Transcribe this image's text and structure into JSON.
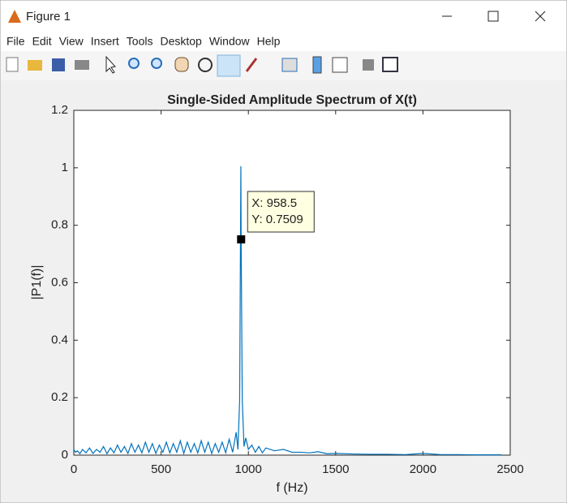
{
  "window": {
    "title": "Figure 1"
  },
  "menu": [
    "File",
    "Edit",
    "View",
    "Insert",
    "Tools",
    "Desktop",
    "Window",
    "Help"
  ],
  "chart_data": {
    "type": "line",
    "title": "Single-Sided Amplitude Spectrum of X(t)",
    "xlabel": "f (Hz)",
    "ylabel": "|P1(f)|",
    "color": "#0072bd",
    "x": [
      0,
      10,
      20,
      35,
      50,
      70,
      90,
      110,
      130,
      150,
      170,
      190,
      210,
      230,
      250,
      270,
      290,
      310,
      330,
      350,
      370,
      390,
      410,
      430,
      450,
      470,
      490,
      510,
      530,
      550,
      570,
      590,
      610,
      630,
      650,
      670,
      690,
      710,
      730,
      750,
      770,
      790,
      810,
      830,
      850,
      870,
      890,
      910,
      930,
      940,
      950,
      957,
      958.5,
      965,
      975,
      985,
      1000,
      1020,
      1040,
      1060,
      1080,
      1100,
      1150,
      1200,
      1250,
      1300,
      1350,
      1400,
      1450,
      1500,
      1600,
      1700,
      1800,
      1900,
      2000,
      2100,
      2200,
      2300,
      2400,
      2450
    ],
    "values": [
      0.02,
      0.01,
      0.015,
      0.005,
      0.02,
      0.008,
      0.025,
      0.006,
      0.02,
      0.01,
      0.03,
      0.005,
      0.025,
      0.008,
      0.035,
      0.01,
      0.03,
      0.006,
      0.04,
      0.01,
      0.035,
      0.008,
      0.045,
      0.01,
      0.04,
      0.006,
      0.035,
      0.01,
      0.045,
      0.008,
      0.04,
      0.01,
      0.05,
      0.006,
      0.045,
      0.01,
      0.04,
      0.008,
      0.05,
      0.01,
      0.045,
      0.006,
      0.04,
      0.01,
      0.045,
      0.008,
      0.055,
      0.01,
      0.08,
      0.02,
      0.19,
      1.005,
      0.7509,
      0.19,
      0.03,
      0.06,
      0.02,
      0.035,
      0.01,
      0.03,
      0.008,
      0.025,
      0.015,
      0.02,
      0.01,
      0.01,
      0.008,
      0.012,
      0.005,
      0.006,
      0.004,
      0.003,
      0.003,
      0.002,
      0.006,
      0.002,
      0.002,
      0.001,
      0.001,
      0.001
    ],
    "xlim": [
      0,
      2500
    ],
    "xticks": [
      0,
      500,
      1000,
      1500,
      2000,
      2500
    ],
    "ylim": [
      0,
      1.2
    ],
    "yticks": [
      0,
      0.2,
      0.4,
      0.6,
      0.8,
      1,
      1.2
    ],
    "datatip": {
      "x": 958.5,
      "y": 0.7509,
      "lines": [
        "X: 958.5",
        "Y: 0.7509"
      ]
    }
  }
}
